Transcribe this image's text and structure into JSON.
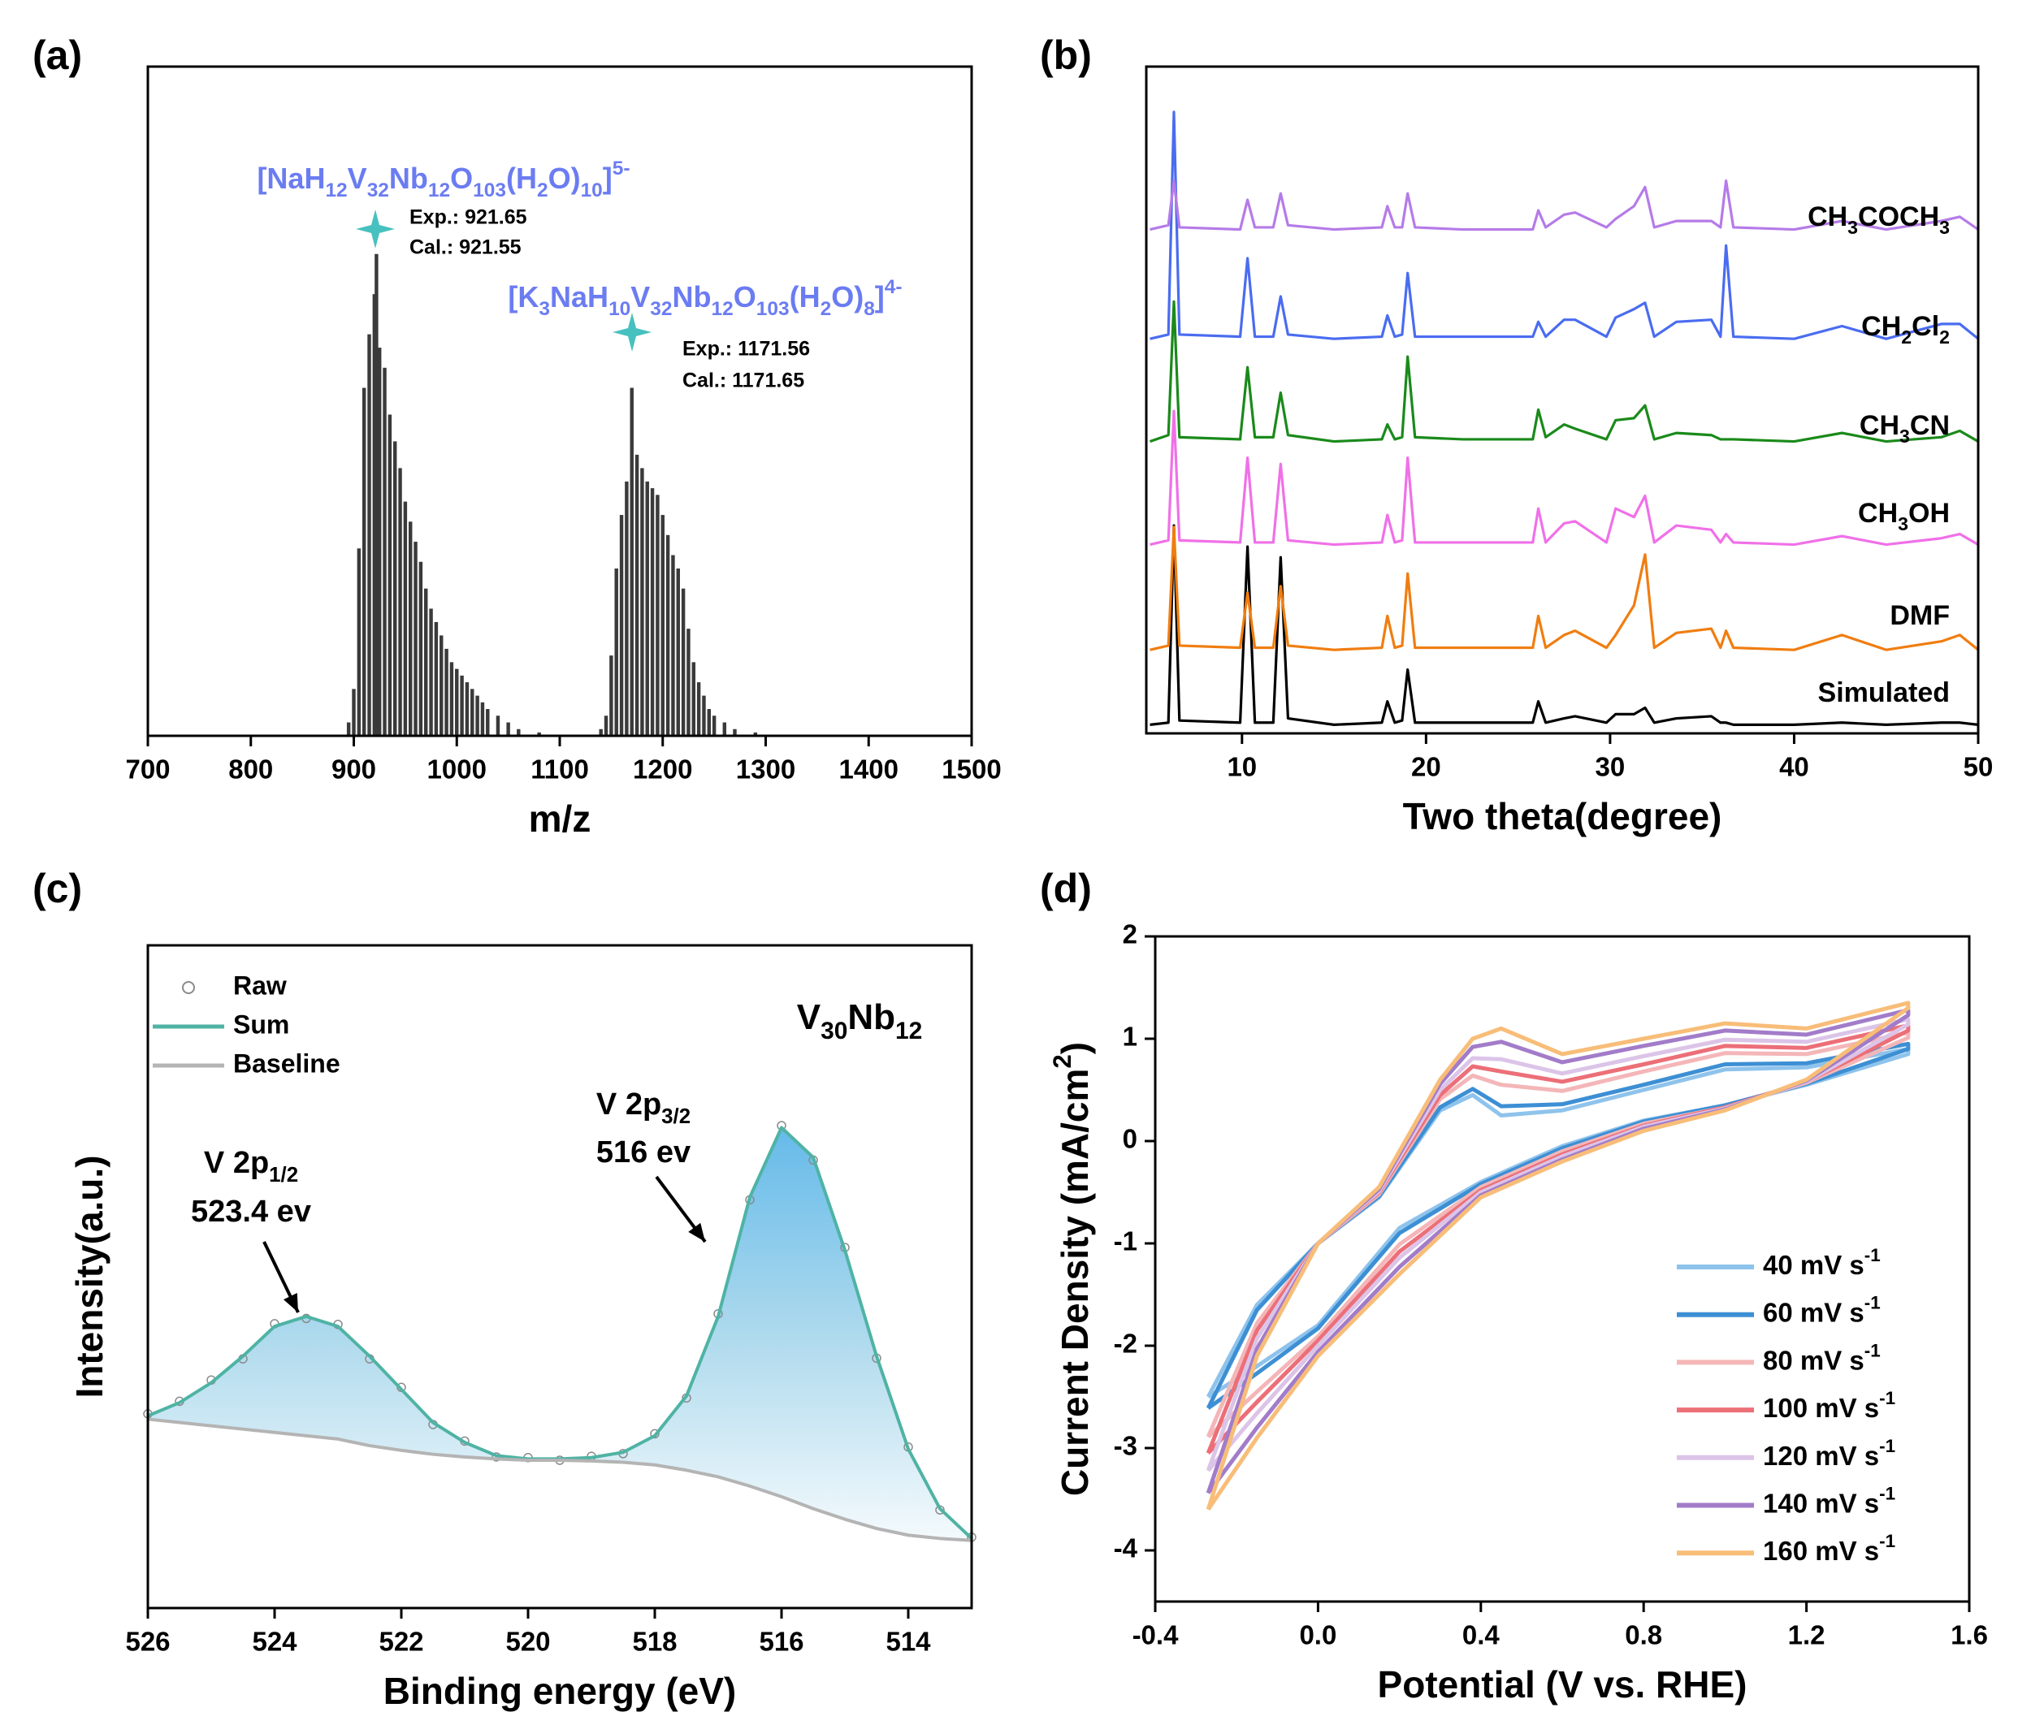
{
  "chart_data": [
    {
      "type": "bar",
      "panel_label": "(a)",
      "x_label": "m/z",
      "xlim": [
        700,
        1500
      ],
      "ylim": [
        0,
        100
      ],
      "xticks": [
        700,
        800,
        900,
        1000,
        1100,
        1200,
        1300,
        1400,
        1500
      ],
      "color": "#3a3a3a",
      "annotation_color": "#6b7cf2",
      "marker_color": "#47c1bf",
      "x": [
        895,
        900,
        905,
        910,
        915,
        920,
        922,
        925,
        930,
        935,
        940,
        945,
        950,
        955,
        960,
        965,
        970,
        975,
        980,
        985,
        990,
        995,
        1000,
        1005,
        1010,
        1015,
        1020,
        1025,
        1030,
        1040,
        1050,
        1060,
        1080,
        1140,
        1145,
        1150,
        1155,
        1160,
        1165,
        1170,
        1175,
        1180,
        1185,
        1190,
        1195,
        1200,
        1205,
        1210,
        1215,
        1220,
        1225,
        1230,
        1235,
        1240,
        1245,
        1250,
        1260,
        1270,
        1290
      ],
      "values": [
        2,
        7,
        28,
        52,
        60,
        66,
        72,
        58,
        55,
        48,
        44,
        40,
        35,
        32,
        29,
        26,
        22,
        19,
        17,
        15,
        13,
        11,
        10,
        9,
        8,
        7,
        6,
        5,
        4,
        3,
        2,
        1,
        0.5,
        1,
        3,
        12,
        25,
        33,
        38,
        52,
        42,
        40,
        38,
        37,
        36,
        33,
        30,
        27,
        25,
        22,
        16,
        11,
        8,
        6,
        4,
        3,
        2,
        1,
        0.5
      ],
      "annotations": [
        {
          "formula": [
            {
              "t": "[NaH"
            },
            {
              "t": "12",
              "s": "sub"
            },
            {
              "t": "V"
            },
            {
              "t": "32",
              "s": "sub"
            },
            {
              "t": "Nb"
            },
            {
              "t": "12",
              "s": "sub"
            },
            {
              "t": "O"
            },
            {
              "t": "103",
              "s": "sub"
            },
            {
              "t": "(H"
            },
            {
              "t": "2",
              "s": "sub"
            },
            {
              "t": "O)"
            },
            {
              "t": "10",
              "s": "sub"
            },
            {
              "t": "]"
            },
            {
              "t": "5-",
              "s": "sup"
            }
          ],
          "lines": [
            "Exp.: 921.65",
            "Cal.:  921.55"
          ]
        },
        {
          "formula": [
            {
              "t": "[K"
            },
            {
              "t": "3",
              "s": "sub"
            },
            {
              "t": "NaH"
            },
            {
              "t": "10",
              "s": "sub"
            },
            {
              "t": "V"
            },
            {
              "t": "32",
              "s": "sub"
            },
            {
              "t": "Nb"
            },
            {
              "t": "12",
              "s": "sub"
            },
            {
              "t": "O"
            },
            {
              "t": "103",
              "s": "sub"
            },
            {
              "t": "(H"
            },
            {
              "t": "2",
              "s": "sub"
            },
            {
              "t": "O)"
            },
            {
              "t": "8",
              "s": "sub"
            },
            {
              "t": "]"
            },
            {
              "t": "4-",
              "s": "sup"
            }
          ],
          "lines": [
            "Exp.: 1171.56",
            "Cal.:  1171.65"
          ]
        }
      ]
    },
    {
      "type": "line",
      "panel_label": "(b)",
      "x_label": "Two theta(degree)",
      "offset": true,
      "xlim": [
        4.8,
        50
      ],
      "xticks": [
        10,
        20,
        30,
        40,
        50
      ],
      "x": [
        5,
        6,
        6.3,
        6.6,
        9.9,
        10.3,
        10.7,
        11.7,
        12.1,
        12.5,
        15,
        17.6,
        17.9,
        18.3,
        18.7,
        19,
        19.4,
        22,
        25.8,
        26.1,
        26.5,
        27.5,
        28.1,
        29.8,
        30.3,
        31.3,
        31.9,
        32.4,
        33.6,
        35.5,
        36,
        36.3,
        36.7,
        40,
        42.6,
        45,
        48,
        49,
        50
      ],
      "series": [
        {
          "name": "Simulated",
          "color": "#000000",
          "values": [
            1,
            2,
            95,
            3,
            2,
            85,
            2,
            2,
            80,
            4,
            1,
            2,
            12,
            2,
            3,
            27,
            2,
            2,
            2,
            12,
            2,
            4,
            5,
            2,
            6,
            6,
            9,
            2,
            4,
            5,
            2,
            2,
            1,
            1,
            2,
            1,
            2,
            2,
            1
          ]
        },
        {
          "name": "DMF",
          "color": "#f07d10",
          "values": [
            3,
            5,
            61,
            5,
            4,
            30,
            4,
            4,
            33,
            5,
            3,
            4,
            19,
            4,
            5,
            39,
            4,
            4,
            4,
            19,
            4,
            10,
            12,
            4,
            10,
            24,
            48,
            4,
            11,
            13,
            4,
            12,
            4,
            3,
            10,
            3,
            7,
            10,
            3
          ]
        },
        {
          "name": [
            {
              "t": "CH"
            },
            {
              "t": "3",
              "s": "sub"
            },
            {
              "t": "OH"
            }
          ],
          "color": "#f070e8",
          "values": [
            4,
            6,
            67,
            6,
            5,
            45,
            5,
            5,
            42,
            6,
            4,
            5,
            18,
            5,
            6,
            45,
            5,
            5,
            5,
            21,
            5,
            14,
            15,
            5,
            21,
            17,
            27,
            5,
            13,
            11,
            5,
            9,
            5,
            4,
            8,
            4,
            7,
            9,
            4
          ]
        },
        {
          "name": [
            {
              "t": "CH"
            },
            {
              "t": "3",
              "s": "sub"
            },
            {
              "t": "CN"
            }
          ],
          "color": "#1a8a1a",
          "values": [
            4,
            7,
            70,
            6,
            5,
            39,
            6,
            6,
            27,
            7,
            4,
            5,
            12,
            5,
            6,
            44,
            6,
            5,
            5,
            19,
            6,
            12,
            10,
            5,
            14,
            15,
            21,
            5,
            8,
            7,
            5,
            5,
            5,
            4,
            8,
            4,
            6,
            9,
            4
          ]
        },
        {
          "name": [
            {
              "t": "CH"
            },
            {
              "t": "2",
              "s": "sub"
            },
            {
              "t": "Cl"
            },
            {
              "t": "2",
              "s": "sub"
            }
          ],
          "color": "#4a6cf0",
          "values": [
            3,
            5,
            110,
            5,
            4,
            41,
            4,
            4,
            23,
            5,
            3,
            4,
            14,
            4,
            5,
            34,
            4,
            4,
            4,
            11,
            4,
            12,
            12,
            4,
            13,
            17,
            20,
            4,
            11,
            12,
            4,
            47,
            4,
            3,
            9,
            3,
            10,
            10,
            3
          ]
        },
        {
          "name": [
            {
              "t": "CH"
            },
            {
              "t": "3",
              "s": "sub"
            },
            {
              "t": "COCH"
            },
            {
              "t": "3",
              "s": "sub"
            }
          ],
          "color": "#b57be8",
          "values": [
            4,
            6,
            27,
            5,
            4,
            18,
            5,
            5,
            21,
            6,
            4,
            5,
            15,
            5,
            5,
            21,
            5,
            4,
            4,
            13,
            5,
            11,
            12,
            5,
            9,
            15,
            24,
            5,
            8,
            8,
            5,
            27,
            5,
            4,
            8,
            4,
            8,
            10,
            4
          ]
        }
      ]
    },
    {
      "type": "line",
      "panel_label": "(c)",
      "x_label": "Binding energy (eV)",
      "y_label": "Intensity(a.u.)",
      "fill": true,
      "xlim": [
        526,
        513
      ],
      "ylim": [
        0,
        100
      ],
      "xticks": [
        526,
        524,
        522,
        520,
        518,
        516,
        514
      ],
      "x": [
        526,
        525.5,
        525,
        524.5,
        524,
        523.5,
        523,
        522.5,
        522,
        521.5,
        521,
        520.5,
        520,
        519.5,
        519,
        518.5,
        518,
        517.5,
        517,
        516.5,
        516,
        515.5,
        515,
        514.5,
        514,
        513.5,
        513
      ],
      "series": [
        {
          "name": "Raw",
          "color": "#8a8a8a",
          "marker": "circle",
          "values": [
            29.3,
            31.2,
            34.4,
            37.6,
            42.9,
            43.7,
            42.8,
            37.6,
            33.3,
            27.7,
            25.2,
            22.8,
            22.7,
            22.3,
            22.9,
            23.3,
            26.3,
            31.7,
            44.4,
            61.6,
            72.8,
            67.6,
            54.4,
            37.7,
            24.3,
            14.8,
            10.7
          ]
        },
        {
          "name": "Sum",
          "color": "#4fb3a4",
          "values": [
            29,
            31,
            34,
            38,
            42.5,
            44,
            42.5,
            38,
            33,
            28,
            25,
            23,
            22.5,
            22.5,
            22.7,
            23.5,
            26,
            32,
            44,
            62,
            72.5,
            68,
            54,
            38,
            24,
            15,
            10.5
          ]
        },
        {
          "name": "Baseline",
          "color": "#b4b4b4",
          "values": [
            28.5,
            28,
            27.5,
            27,
            26.5,
            26,
            25.5,
            24.5,
            23.8,
            23.2,
            22.8,
            22.5,
            22.3,
            22.3,
            22.2,
            22,
            21.6,
            20.8,
            19.8,
            18.4,
            16.8,
            15,
            13.4,
            12,
            11,
            10.5,
            10.2
          ]
        }
      ],
      "annotations": [
        [
          {
            "t": "V 2p"
          },
          {
            "t": "1/2",
            "s": "sub"
          }
        ],
        "523.4 ev",
        [
          {
            "t": "V 2p"
          },
          {
            "t": "3/2",
            "s": "sub"
          }
        ],
        "516 ev",
        [
          {
            "t": "V"
          },
          {
            "t": "30",
            "s": "sub"
          },
          {
            "t": "Nb"
          },
          {
            "t": "12",
            "s": "sub"
          }
        ]
      ]
    },
    {
      "type": "line",
      "panel_label": "(d)",
      "x_label": "Potential (V vs. RHE)",
      "y_label": [
        {
          "t": "Current Density (mA/cm"
        },
        {
          "t": "2",
          "s": "sup"
        },
        {
          "t": ")"
        }
      ],
      "xlim": [
        -0.4,
        1.6
      ],
      "ylim": [
        -4.5,
        2
      ],
      "xticks": [
        -0.4,
        {
          "value": 0,
          "label": "0.0"
        },
        0.4,
        0.8,
        1.2,
        1.6
      ],
      "yticks": [
        -4,
        -3,
        -2,
        -1,
        0,
        1,
        2
      ],
      "x": [
        -0.27,
        -0.15,
        0,
        0.15,
        0.3,
        0.38,
        0.45,
        0.6,
        0.8,
        1.0,
        1.2,
        1.45,
        1.45,
        1.2,
        1.0,
        0.8,
        0.6,
        0.4,
        0.2,
        0,
        -0.15,
        -0.27
      ],
      "series": [
        {
          "name": [
            {
              "t": "40 mV s"
            },
            {
              "t": "-1",
              "s": "sup"
            }
          ],
          "color": "#8ec3ec",
          "values": [
            -2.5,
            -1.6,
            -1.0,
            -0.55,
            0.3,
            0.45,
            0.25,
            0.3,
            0.5,
            0.7,
            0.72,
            0.9,
            0.85,
            0.55,
            0.35,
            0.2,
            -0.05,
            -0.4,
            -0.85,
            -1.8,
            -2.2,
            -2.5
          ]
        },
        {
          "name": [
            {
              "t": "60 mV s"
            },
            {
              "t": "-1",
              "s": "sup"
            }
          ],
          "color": "#3d8fd4",
          "values": [
            -2.61,
            -1.65,
            -1.0,
            -0.54,
            0.33,
            0.51,
            0.34,
            0.36,
            0.55,
            0.75,
            0.76,
            0.95,
            0.9,
            0.56,
            0.35,
            0.19,
            -0.07,
            -0.42,
            -0.9,
            -1.83,
            -2.27,
            -2.61
          ]
        },
        {
          "name": [
            {
              "t": "80 mV s"
            },
            {
              "t": "-1",
              "s": "sup"
            }
          ],
          "color": "#f4b6b8",
          "values": [
            -2.89,
            -1.78,
            -1.0,
            -0.52,
            0.41,
            0.64,
            0.55,
            0.49,
            0.68,
            0.86,
            0.85,
            1.06,
            1.01,
            0.57,
            0.33,
            0.17,
            -0.1,
            -0.45,
            -1.01,
            -1.91,
            -2.45,
            -2.89
          ]
        },
        {
          "name": [
            {
              "t": "100 mV s"
            },
            {
              "t": "-1",
              "s": "sup"
            }
          ],
          "color": "#ec6f78",
          "values": [
            -3.05,
            -1.85,
            -1.0,
            -0.5,
            0.45,
            0.73,
            0.68,
            0.58,
            0.75,
            0.93,
            0.91,
            1.13,
            1.08,
            0.58,
            0.33,
            0.15,
            -0.13,
            -0.48,
            -1.08,
            -1.95,
            -2.55,
            -3.05
          ]
        },
        {
          "name": [
            {
              "t": "120 mV s"
            },
            {
              "t": "-1",
              "s": "sup"
            }
          ],
          "color": "#dcc4e8",
          "values": [
            -3.22,
            -1.93,
            -1.0,
            -0.49,
            0.5,
            0.81,
            0.8,
            0.66,
            0.83,
            0.99,
            0.97,
            1.19,
            1.14,
            0.58,
            0.32,
            0.14,
            -0.15,
            -0.5,
            -1.14,
            -2.0,
            -2.66,
            -3.22
          ]
        },
        {
          "name": [
            {
              "t": "140 mV s"
            },
            {
              "t": "-1",
              "s": "sup"
            }
          ],
          "color": "#a27cc9",
          "values": [
            -3.44,
            -2.03,
            -1.0,
            -0.47,
            0.56,
            0.92,
            0.97,
            0.77,
            0.93,
            1.08,
            1.04,
            1.28,
            1.23,
            0.59,
            0.31,
            0.12,
            -0.18,
            -0.53,
            -1.23,
            -2.06,
            -2.8,
            -3.44
          ]
        },
        {
          "name": [
            {
              "t": "160 mV s"
            },
            {
              "t": "-1",
              "s": "sup"
            }
          ],
          "color": "#f8bd78",
          "values": [
            -3.6,
            -2.1,
            -1.0,
            -0.45,
            0.6,
            1.0,
            1.1,
            0.85,
            1.0,
            1.15,
            1.1,
            1.35,
            1.3,
            0.6,
            0.3,
            0.1,
            -0.2,
            -0.55,
            -1.3,
            -2.1,
            -2.9,
            -3.6
          ]
        }
      ]
    }
  ]
}
